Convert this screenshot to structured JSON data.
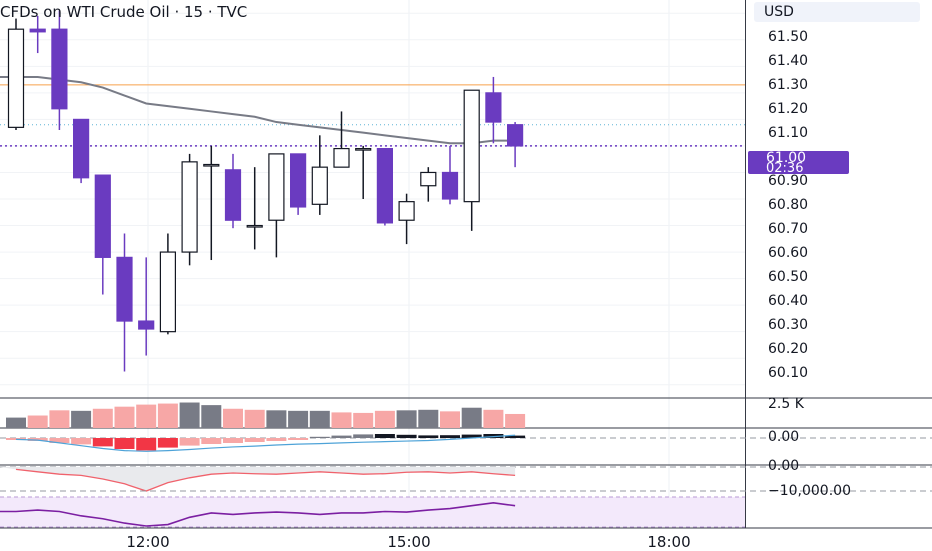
{
  "header": {
    "title": "CFDs on WTI Crude Oil · 15 · TVC"
  },
  "price_axis": {
    "currency": "USD",
    "ticks": [
      "61.50",
      "61.40",
      "61.30",
      "61.20",
      "61.10",
      "61.00",
      "60.90",
      "60.80",
      "60.70",
      "60.60",
      "60.50",
      "60.40",
      "60.30",
      "60.20",
      "60.10"
    ],
    "last_price": "61.00",
    "countdown": "02:36"
  },
  "indicator_axis": {
    "volume_tick": "2.5 K",
    "macd_zero": "0.00",
    "osc_zero": "0.00",
    "osc_low": "−10,000.00"
  },
  "time_axis": {
    "labels": [
      "12:00",
      "15:00",
      "18:00"
    ]
  },
  "colors": {
    "up": "#ffffff",
    "down": "#6a3bc0",
    "wick": "#131722",
    "moving_average": "#787b86",
    "horizontal_line": "#f7a04b",
    "volume_up": "#787b86",
    "volume_down": "#f7a7a6"
  },
  "chart_data": {
    "type": "candlestick",
    "instrument": "CFDs on WTI Crude Oil",
    "interval": "15",
    "source": "TVC",
    "price_range": [
      60.05,
      61.55
    ],
    "horizontal_line_price": 61.23,
    "candles": [
      {
        "o": 61.07,
        "h": 61.48,
        "l": 61.06,
        "c": 61.44
      },
      {
        "o": 61.44,
        "h": 61.49,
        "l": 61.35,
        "c": 61.43
      },
      {
        "o": 61.44,
        "h": 61.51,
        "l": 61.06,
        "c": 61.14
      },
      {
        "o": 61.1,
        "h": 61.1,
        "l": 60.86,
        "c": 60.88
      },
      {
        "o": 60.89,
        "h": 60.89,
        "l": 60.44,
        "c": 60.58
      },
      {
        "o": 60.58,
        "h": 60.67,
        "l": 60.15,
        "c": 60.34
      },
      {
        "o": 60.34,
        "h": 60.58,
        "l": 60.21,
        "c": 60.31
      },
      {
        "o": 60.3,
        "h": 60.67,
        "l": 60.29,
        "c": 60.6
      },
      {
        "o": 60.6,
        "h": 60.97,
        "l": 60.55,
        "c": 60.94
      },
      {
        "o": 60.93,
        "h": 61.0,
        "l": 60.57,
        "c": 60.93
      },
      {
        "o": 60.91,
        "h": 60.97,
        "l": 60.69,
        "c": 60.72
      },
      {
        "o": 60.7,
        "h": 60.92,
        "l": 60.61,
        "c": 60.7
      },
      {
        "o": 60.72,
        "h": 60.97,
        "l": 60.58,
        "c": 60.97
      },
      {
        "o": 60.97,
        "h": 60.97,
        "l": 60.74,
        "c": 60.77
      },
      {
        "o": 60.78,
        "h": 61.04,
        "l": 60.74,
        "c": 60.92
      },
      {
        "o": 60.92,
        "h": 61.13,
        "l": 60.92,
        "c": 60.99
      },
      {
        "o": 60.99,
        "h": 61.0,
        "l": 60.8,
        "c": 60.99
      },
      {
        "o": 60.99,
        "h": 60.99,
        "l": 60.7,
        "c": 60.71
      },
      {
        "o": 60.72,
        "h": 60.82,
        "l": 60.63,
        "c": 60.79
      },
      {
        "o": 60.85,
        "h": 60.92,
        "l": 60.79,
        "c": 60.9
      },
      {
        "o": 60.9,
        "h": 61.0,
        "l": 60.78,
        "c": 60.8
      },
      {
        "o": 60.79,
        "h": 61.21,
        "l": 60.68,
        "c": 61.21
      },
      {
        "o": 61.2,
        "h": 61.26,
        "l": 61.01,
        "c": 61.09
      },
      {
        "o": 61.08,
        "h": 61.09,
        "l": 60.92,
        "c": 61.0
      }
    ],
    "moving_average": [
      61.26,
      61.26,
      61.25,
      61.24,
      61.22,
      61.19,
      61.16,
      61.15,
      61.14,
      61.13,
      61.12,
      61.11,
      61.09,
      61.08,
      61.07,
      61.06,
      61.05,
      61.04,
      61.03,
      61.02,
      61.01,
      61.01,
      61.02,
      61.02
    ],
    "volume": {
      "max_tick": 2500,
      "values": [
        1000,
        1200,
        1700,
        1650,
        1850,
        2050,
        2250,
        2350,
        2450,
        2200,
        1850,
        1750,
        1700,
        1650,
        1650,
        1500,
        1450,
        1650,
        1700,
        1750,
        1600,
        1950,
        1750,
        1350
      ],
      "up": [
        true,
        false,
        false,
        true,
        false,
        false,
        false,
        false,
        true,
        true,
        false,
        false,
        true,
        true,
        true,
        false,
        false,
        false,
        true,
        true,
        false,
        true,
        false,
        false
      ]
    },
    "macd_histogram": [
      -100,
      -150,
      -250,
      -320,
      -420,
      -550,
      -620,
      -480,
      -380,
      -300,
      -250,
      -200,
      -150,
      -100,
      60,
      120,
      180,
      200,
      160,
      130,
      140,
      170,
      200,
      120
    ],
    "macd_line": [
      0.1,
      0.15,
      0.35,
      0.55,
      0.75,
      0.9,
      0.95,
      0.9,
      0.82,
      0.72,
      0.64,
      0.58,
      0.5,
      0.44,
      0.4,
      0.35,
      0.3,
      0.26,
      0.22,
      0.18,
      0.1,
      0.0,
      -0.1,
      -0.2
    ],
    "oscillator": [
      0.1,
      0.2,
      0.3,
      0.35,
      0.5,
      0.7,
      1.0,
      0.65,
      0.45,
      0.3,
      0.25,
      0.28,
      0.3,
      0.25,
      0.2,
      0.25,
      0.3,
      0.28,
      0.22,
      0.2,
      0.25,
      0.2,
      0.28,
      0.35
    ],
    "bottom_oscillator": [
      0.5,
      0.45,
      0.5,
      0.65,
      0.75,
      0.9,
      1.0,
      0.95,
      0.7,
      0.55,
      0.6,
      0.55,
      0.52,
      0.55,
      0.6,
      0.55,
      0.55,
      0.5,
      0.52,
      0.45,
      0.4,
      0.3,
      0.2,
      0.3
    ]
  }
}
